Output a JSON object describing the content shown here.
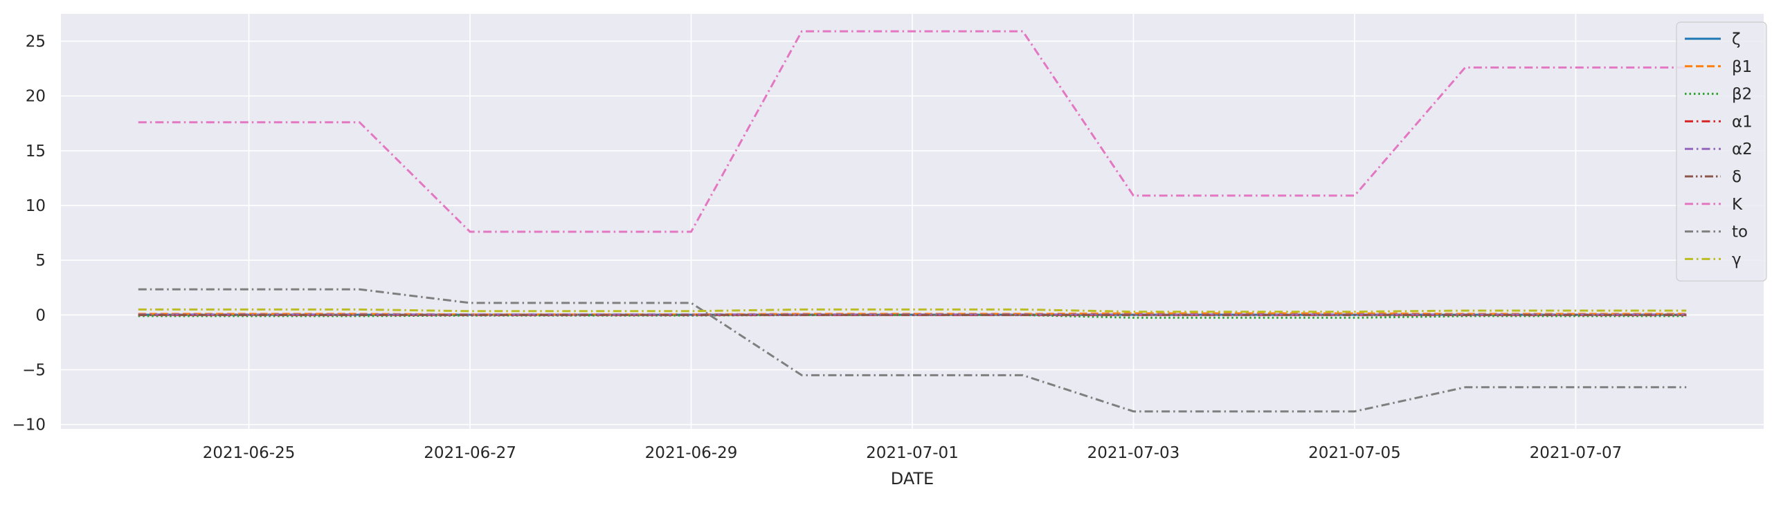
{
  "chart_data": {
    "type": "line",
    "title": "",
    "xlabel": "DATE",
    "ylabel": "",
    "x": [
      "2021-06-24",
      "2021-06-25",
      "2021-06-26",
      "2021-06-27",
      "2021-06-28",
      "2021-06-29",
      "2021-06-30",
      "2021-07-01",
      "2021-07-02",
      "2021-07-03",
      "2021-07-04",
      "2021-07-05",
      "2021-07-06",
      "2021-07-07",
      "2021-07-08"
    ],
    "x_ticks": [
      "2021-06-25",
      "2021-06-27",
      "2021-06-29",
      "2021-07-01",
      "2021-07-03",
      "2021-07-05",
      "2021-07-07"
    ],
    "xlim": [
      "2021-06-23T07:12",
      "2021-07-08T16:48"
    ],
    "y_ticks": [
      -10,
      -5,
      0,
      5,
      10,
      15,
      20,
      25
    ],
    "ylim": [
      -10.4,
      27.5
    ],
    "grid": true,
    "legend_position": "top-right",
    "background": "#eaeaf2",
    "series": [
      {
        "name": "ζ",
        "color": "#1f77b4",
        "dash": "solid",
        "values": [
          0.02,
          0.02,
          0.02,
          0.02,
          0.02,
          0.02,
          0.02,
          0.02,
          0.02,
          0.02,
          0.02,
          0.02,
          0.02,
          0.02,
          0.02
        ]
      },
      {
        "name": "β1",
        "color": "#ff7f0e",
        "dash": "dashed",
        "values": [
          0.1,
          0.1,
          0.1,
          0.05,
          0.05,
          0.05,
          0.1,
          0.1,
          0.1,
          0.15,
          0.15,
          0.15,
          0.1,
          0.1,
          0.1
        ]
      },
      {
        "name": "β2",
        "color": "#2ca02c",
        "dash": "dotted",
        "values": [
          -0.1,
          -0.1,
          -0.1,
          -0.05,
          -0.05,
          -0.05,
          0.0,
          0.0,
          0.0,
          -0.25,
          -0.25,
          -0.25,
          -0.1,
          -0.1,
          -0.1
        ]
      },
      {
        "name": "α1",
        "color": "#d62728",
        "dash": "dashdot",
        "values": [
          0.0,
          0.0,
          0.0,
          0.0,
          0.0,
          0.0,
          0.0,
          0.0,
          0.0,
          0.0,
          0.0,
          0.0,
          0.0,
          0.0,
          0.0
        ]
      },
      {
        "name": "α2",
        "color": "#9467bd",
        "dash": "dashdot",
        "values": [
          0.05,
          0.05,
          0.05,
          0.05,
          0.05,
          0.05,
          0.05,
          0.05,
          0.05,
          0.05,
          0.05,
          0.05,
          0.05,
          0.05,
          0.05
        ]
      },
      {
        "name": "δ",
        "color": "#8c564b",
        "dash": "dashdotdot",
        "values": [
          0.0,
          0.0,
          0.0,
          0.0,
          0.0,
          0.0,
          0.0,
          0.0,
          0.0,
          0.0,
          0.0,
          0.0,
          0.0,
          0.0,
          0.0
        ]
      },
      {
        "name": "K",
        "color": "#e377c2",
        "dash": "dashdot",
        "values": [
          17.6,
          17.6,
          17.6,
          7.6,
          7.6,
          7.6,
          25.9,
          25.9,
          25.9,
          10.9,
          10.9,
          10.9,
          22.6,
          22.6,
          22.6
        ]
      },
      {
        "name": "to",
        "color": "#7f7f7f",
        "dash": "dashdot",
        "values": [
          2.35,
          2.35,
          2.35,
          1.1,
          1.1,
          1.1,
          -5.5,
          -5.5,
          -5.5,
          -8.8,
          -8.8,
          -8.8,
          -6.6,
          -6.6,
          -6.6
        ]
      },
      {
        "name": "γ",
        "color": "#bcbd22",
        "dash": "dashdot",
        "values": [
          0.5,
          0.5,
          0.5,
          0.35,
          0.35,
          0.35,
          0.5,
          0.5,
          0.5,
          0.3,
          0.3,
          0.3,
          0.4,
          0.4,
          0.4
        ]
      }
    ]
  }
}
